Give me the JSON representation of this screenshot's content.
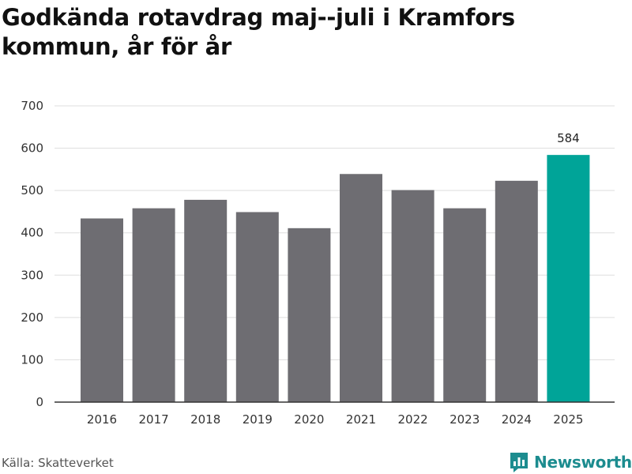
{
  "title": "Godkända rotavdrag maj--juli i Kramfors kommun, år för år",
  "source": "Källa: Skatteverket",
  "brand": {
    "name": "Newsworthy",
    "icon": "newsworthy-logo-icon",
    "color": "#1c8c8f"
  },
  "colors": {
    "bar": "#6e6d72",
    "highlight": "#00a498",
    "grid": "#dddddd",
    "axis": "#333333"
  },
  "chart_data": {
    "type": "bar",
    "categories": [
      "2016",
      "2017",
      "2018",
      "2019",
      "2020",
      "2021",
      "2022",
      "2023",
      "2024",
      "2025"
    ],
    "values": [
      434,
      458,
      478,
      449,
      411,
      539,
      501,
      458,
      523,
      584
    ],
    "highlight_index": 9,
    "data_labels": {
      "2025": "584"
    },
    "ylim": [
      0,
      700
    ],
    "yticks": [
      0,
      100,
      200,
      300,
      400,
      500,
      600,
      700
    ],
    "grid": true,
    "legend": "none",
    "xlabel": "",
    "ylabel": ""
  }
}
